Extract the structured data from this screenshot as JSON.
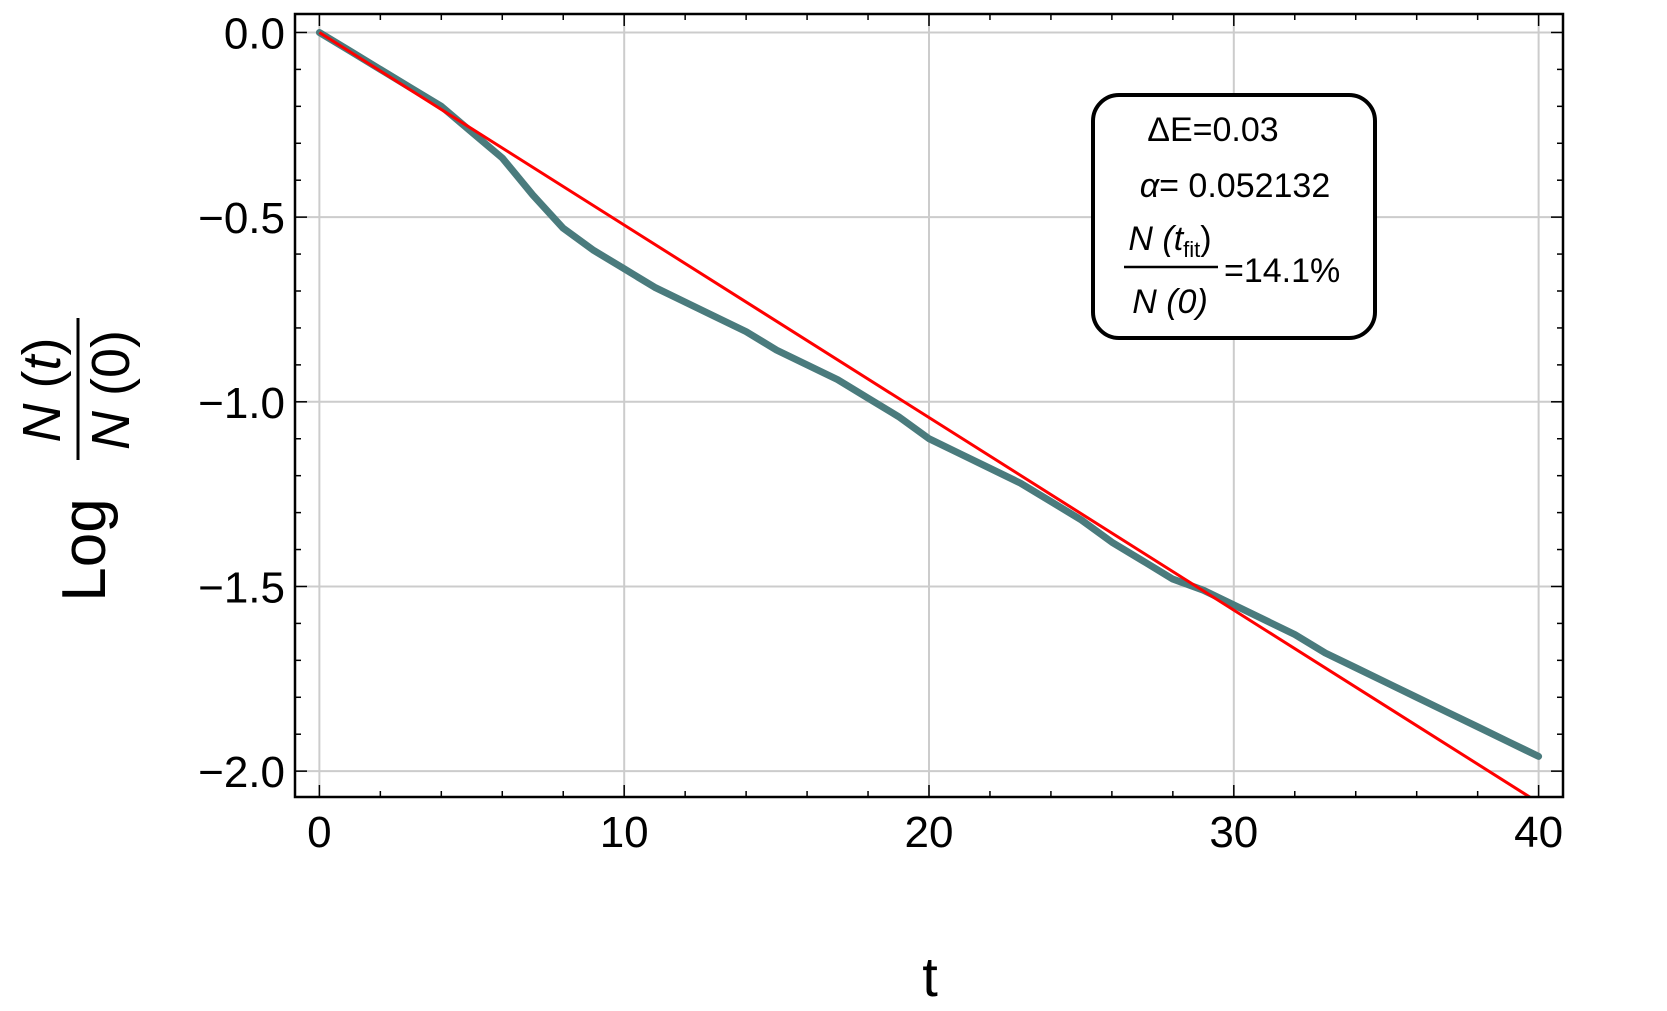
{
  "chart_data": {
    "type": "line",
    "xlabel": "t",
    "ylabel": {
      "prefix": "Log",
      "numerator": "N",
      "numerator_arg": "t",
      "denominator": "N",
      "denominator_arg": "0"
    },
    "xlim": [
      -0.8,
      40.8
    ],
    "ylim": [
      -2.07,
      0.05
    ],
    "x_ticks": [
      0,
      10,
      20,
      30,
      40
    ],
    "x_tick_labels": [
      "0",
      "10",
      "20",
      "30",
      "40"
    ],
    "y_ticks": [
      0.0,
      -0.5,
      -1.0,
      -1.5,
      -2.0
    ],
    "y_tick_labels": [
      "0.0",
      "−0.5",
      "−1.0",
      "−1.5",
      "−2.0"
    ],
    "grid": true,
    "series": [
      {
        "kind": "data",
        "color": "#4a7b7d",
        "x": [
          0,
          1,
          2,
          3,
          4,
          5,
          6,
          7,
          8,
          9,
          10,
          11,
          12,
          13,
          14,
          15,
          16,
          17,
          18,
          19,
          20,
          21,
          22,
          23,
          24,
          25,
          26,
          27,
          28,
          29,
          30,
          31,
          32,
          33,
          34,
          35,
          36,
          37,
          38,
          39,
          40
        ],
        "y": [
          0.0,
          -0.05,
          -0.1,
          -0.15,
          -0.2,
          -0.27,
          -0.34,
          -0.44,
          -0.53,
          -0.59,
          -0.64,
          -0.69,
          -0.73,
          -0.77,
          -0.81,
          -0.86,
          -0.9,
          -0.94,
          -0.99,
          -1.04,
          -1.1,
          -1.14,
          -1.18,
          -1.22,
          -1.27,
          -1.32,
          -1.38,
          -1.43,
          -1.48,
          -1.51,
          -1.55,
          -1.59,
          -1.63,
          -1.68,
          -1.72,
          -1.76,
          -1.8,
          -1.84,
          -1.88,
          -1.92,
          -1.96
        ]
      },
      {
        "kind": "fit",
        "color": "#ff0000",
        "slope": -0.052132,
        "intercept": 0.0,
        "x_range": [
          0,
          40.8
        ]
      }
    ],
    "annotation": {
      "line1": "ΔE=0.03",
      "alpha_symbol": "α",
      "alpha_value": "= 0.052132",
      "ratio_num": "N (t",
      "ratio_sub": "fit",
      "ratio_num_close": ")",
      "ratio_den": "N (0)",
      "ratio_value": "=14.1%",
      "position": "top-right"
    }
  }
}
